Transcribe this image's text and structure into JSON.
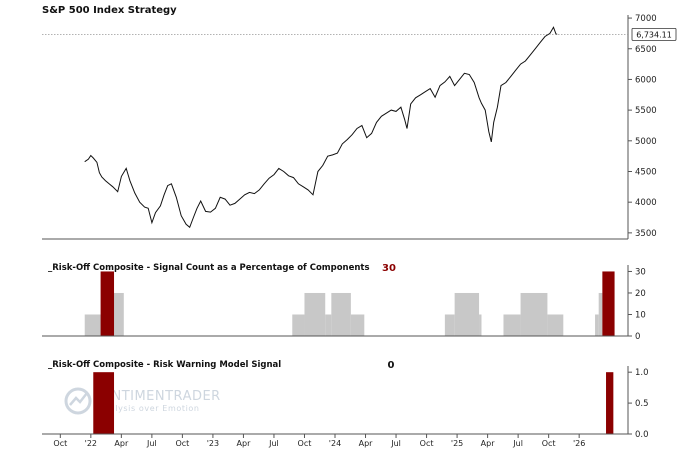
{
  "chart_data": [
    {
      "type": "line",
      "title": "S&P 500 Index Strategy",
      "ylim": [
        3400,
        7050
      ],
      "yticks": [
        3500,
        4000,
        4500,
        5000,
        5500,
        6000,
        6500,
        7000
      ],
      "last_value": 6734.11,
      "last_value_label": "6,734.11",
      "series": [
        {
          "name": "S&P 500",
          "x": [
            2021.95,
            2021.98,
            2022.0,
            2022.02,
            2022.05,
            2022.07,
            2022.09,
            2022.12,
            2022.15,
            2022.18,
            2022.22,
            2022.25,
            2022.29,
            2022.32,
            2022.36,
            2022.4,
            2022.44,
            2022.47,
            2022.5,
            2022.53,
            2022.57,
            2022.6,
            2022.63,
            2022.66,
            2022.7,
            2022.74,
            2022.78,
            2022.81,
            2022.84,
            2022.87,
            2022.9,
            2022.94,
            2022.98,
            2023.02,
            2023.06,
            2023.1,
            2023.14,
            2023.18,
            2023.22,
            2023.26,
            2023.3,
            2023.34,
            2023.38,
            2023.42,
            2023.46,
            2023.5,
            2023.54,
            2023.58,
            2023.62,
            2023.66,
            2023.7,
            2023.74,
            2023.78,
            2023.82,
            2023.86,
            2023.9,
            2023.94,
            2023.98,
            2024.02,
            2024.06,
            2024.1,
            2024.14,
            2024.18,
            2024.22,
            2024.26,
            2024.3,
            2024.34,
            2024.38,
            2024.42,
            2024.46,
            2024.5,
            2024.54,
            2024.57,
            2024.59,
            2024.62,
            2024.66,
            2024.7,
            2024.74,
            2024.78,
            2024.82,
            2024.86,
            2024.9,
            2024.94,
            2024.98,
            2025.02,
            2025.06,
            2025.1,
            2025.14,
            2025.18,
            2025.2,
            2025.23,
            2025.26,
            2025.28,
            2025.3,
            2025.33,
            2025.36,
            2025.4,
            2025.44,
            2025.48,
            2025.52,
            2025.56,
            2025.6,
            2025.64,
            2025.68,
            2025.72,
            2025.76,
            2025.79,
            2025.81,
            2025.82
          ],
          "values": [
            4660,
            4700,
            4760,
            4720,
            4650,
            4480,
            4410,
            4350,
            4300,
            4250,
            4170,
            4420,
            4550,
            4350,
            4150,
            4000,
            3920,
            3900,
            3666,
            3830,
            3940,
            4120,
            4270,
            4300,
            4080,
            3780,
            3640,
            3590,
            3750,
            3900,
            4020,
            3850,
            3839,
            3900,
            4080,
            4050,
            3950,
            3980,
            4050,
            4120,
            4160,
            4140,
            4200,
            4300,
            4390,
            4450,
            4550,
            4500,
            4430,
            4400,
            4300,
            4250,
            4200,
            4120,
            4500,
            4600,
            4750,
            4770,
            4800,
            4950,
            5020,
            5100,
            5200,
            5250,
            5050,
            5120,
            5300,
            5400,
            5450,
            5500,
            5480,
            5550,
            5350,
            5200,
            5600,
            5700,
            5750,
            5800,
            5850,
            5710,
            5900,
            5960,
            6050,
            5900,
            6000,
            6100,
            6080,
            5950,
            5700,
            5610,
            5500,
            5150,
            4982,
            5300,
            5550,
            5900,
            5950,
            6050,
            6150,
            6250,
            6300,
            6400,
            6500,
            6600,
            6700,
            6750,
            6850,
            6740,
            6734.11
          ]
        }
      ]
    },
    {
      "type": "bar",
      "title": "_Risk-Off Composite - Signal Count as a Percentage of Components",
      "current_value": 30,
      "current_value_label": "30",
      "ylim": [
        0,
        33
      ],
      "yticks": [
        0,
        10,
        20,
        30
      ],
      "segments": [
        {
          "start": 2021.95,
          "end": 2022.15,
          "value": 10
        },
        {
          "start": 2022.15,
          "end": 2022.27,
          "value": 20
        },
        {
          "start": 2023.65,
          "end": 2023.75,
          "value": 10
        },
        {
          "start": 2023.75,
          "end": 2023.92,
          "value": 20
        },
        {
          "start": 2023.92,
          "end": 2023.97,
          "value": 10
        },
        {
          "start": 2023.97,
          "end": 2024.13,
          "value": 20
        },
        {
          "start": 2024.13,
          "end": 2024.24,
          "value": 10
        },
        {
          "start": 2024.9,
          "end": 2024.98,
          "value": 10
        },
        {
          "start": 2024.98,
          "end": 2025.18,
          "value": 20
        },
        {
          "start": 2025.18,
          "end": 2025.2,
          "value": 10
        },
        {
          "start": 2025.38,
          "end": 2025.52,
          "value": 10
        },
        {
          "start": 2025.52,
          "end": 2025.74,
          "value": 20
        },
        {
          "start": 2025.74,
          "end": 2025.87,
          "value": 10
        },
        {
          "start": 2026.13,
          "end": 2026.16,
          "value": 10
        },
        {
          "start": 2026.16,
          "end": 2026.19,
          "value": 20
        }
      ],
      "highlights": [
        {
          "start": 2022.08,
          "end": 2022.19,
          "value": 30
        },
        {
          "start": 2026.19,
          "end": 2026.29,
          "value": 30
        }
      ]
    },
    {
      "type": "bar",
      "title": "_Risk-Off Composite - Risk Warning Model Signal",
      "current_value": 0,
      "current_value_label": "0",
      "ylim": [
        0,
        1.1
      ],
      "yticks": [
        0,
        0.5,
        1
      ],
      "ytick_labels": [
        "0.0",
        "0.5",
        "1.0"
      ],
      "highlights": [
        {
          "start": 2022.02,
          "end": 2022.19,
          "value": 1.0
        },
        {
          "start": 2026.22,
          "end": 2026.28,
          "value": 1.0
        }
      ],
      "watermark": {
        "brand": "SENTIMENTRADER",
        "tagline": "Analysis over Emotion"
      }
    }
  ],
  "x_axis": {
    "ticks": [
      {
        "x": 2021.75,
        "label": "Oct"
      },
      {
        "x": 2022.0,
        "label": "'22"
      },
      {
        "x": 2022.25,
        "label": "Apr"
      },
      {
        "x": 2022.5,
        "label": "Jul"
      },
      {
        "x": 2022.75,
        "label": "Oct"
      },
      {
        "x": 2023.0,
        "label": "'23"
      },
      {
        "x": 2023.25,
        "label": "Apr"
      },
      {
        "x": 2023.5,
        "label": "Jul"
      },
      {
        "x": 2023.75,
        "label": "Oct"
      },
      {
        "x": 2024.0,
        "label": "'24"
      },
      {
        "x": 2024.25,
        "label": "Apr"
      },
      {
        "x": 2024.5,
        "label": "Jul"
      },
      {
        "x": 2024.75,
        "label": "Oct"
      },
      {
        "x": 2025.0,
        "label": "'25"
      },
      {
        "x": 2025.25,
        "label": "Apr"
      },
      {
        "x": 2025.5,
        "label": "Jul"
      },
      {
        "x": 2025.75,
        "label": "Oct"
      },
      {
        "x": 2026.0,
        "label": "'26"
      }
    ]
  },
  "colors": {
    "line": "#111111",
    "gray_bar": "#c8c8c8",
    "highlight_bar": "#8b0000",
    "value_label": "#8b0000",
    "axis": "#555555",
    "grid_dotted": "#999999",
    "watermark": "#c9d2dc"
  }
}
